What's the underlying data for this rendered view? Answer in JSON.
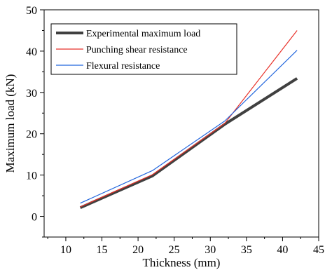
{
  "chart_data": {
    "type": "line",
    "xlabel": "Thickness (mm)",
    "ylabel": "Maximum load (kN)",
    "xlim": [
      7,
      45
    ],
    "ylim": [
      -5,
      50
    ],
    "xticks": [
      10,
      15,
      20,
      25,
      30,
      35,
      40,
      45
    ],
    "yticks": [
      0,
      10,
      20,
      30,
      40,
      50
    ],
    "grid": false,
    "legend_position": "top-left",
    "series": [
      {
        "name": "Experimental maximum load",
        "color": "#404040",
        "x": [
          12,
          22,
          32,
          42
        ],
        "y": [
          2.1,
          9.8,
          22.3,
          33.4
        ]
      },
      {
        "name": "Punching shear resistance",
        "color": "#e8322a",
        "x": [
          12,
          22,
          32,
          42
        ],
        "y": [
          2.3,
          10.1,
          22.5,
          45.0
        ]
      },
      {
        "name": "Flexural resistance",
        "color": "#2266dd",
        "x": [
          12,
          22,
          32,
          42
        ],
        "y": [
          3.2,
          11.1,
          23.1,
          40.2
        ]
      }
    ]
  }
}
